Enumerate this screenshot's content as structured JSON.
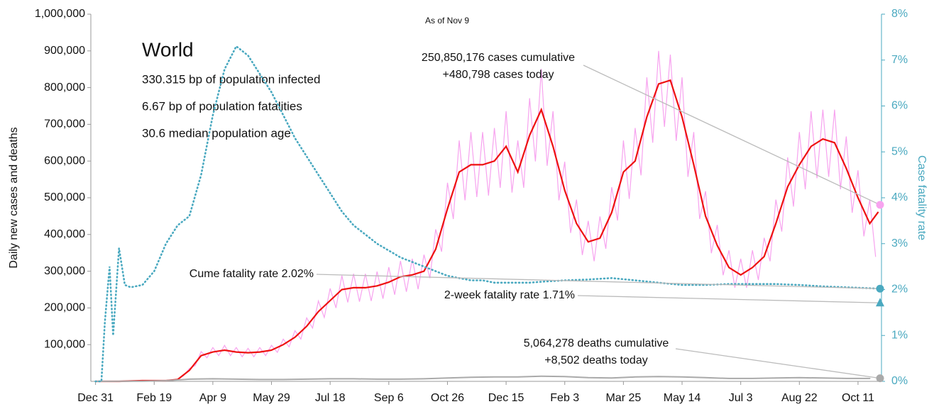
{
  "chart_data": {
    "type": "line",
    "note_date": "As of Nov 9",
    "title": "World",
    "subtitle_lines": [
      "330.315 bp of population infected",
      "6.67 bp of population fatalities",
      "30.6 median population age"
    ],
    "ylabel": "Daily new cases and deaths",
    "y2label": "Case fatality rate",
    "xlim": [
      -4,
      670
    ],
    "xticks": [
      {
        "value": 0,
        "label": "Dec 31"
      },
      {
        "value": 50,
        "label": "Feb 19"
      },
      {
        "value": 100,
        "label": "Apr 9"
      },
      {
        "value": 150,
        "label": "May 29"
      },
      {
        "value": 200,
        "label": "Jul 18"
      },
      {
        "value": 250,
        "label": "Sep 6"
      },
      {
        "value": 300,
        "label": "Oct 26"
      },
      {
        "value": 350,
        "label": "Dec 15"
      },
      {
        "value": 400,
        "label": "Feb 3"
      },
      {
        "value": 450,
        "label": "Mar 25"
      },
      {
        "value": 500,
        "label": "May 14"
      },
      {
        "value": 550,
        "label": "Jul 3"
      },
      {
        "value": 600,
        "label": "Aug 22"
      },
      {
        "value": 650,
        "label": "Oct 11"
      }
    ],
    "ylim": [
      0,
      1000000
    ],
    "yticks": [
      {
        "value": 100000,
        "label": "100,000"
      },
      {
        "value": 200000,
        "label": "200,000"
      },
      {
        "value": 300000,
        "label": "300,000"
      },
      {
        "value": 400000,
        "label": "400,000"
      },
      {
        "value": 500000,
        "label": "500,000"
      },
      {
        "value": 600000,
        "label": "600,000"
      },
      {
        "value": 700000,
        "label": "700,000"
      },
      {
        "value": 800000,
        "label": "800,000"
      },
      {
        "value": 900000,
        "label": "900,000"
      },
      {
        "value": 1000000,
        "label": "1,000,000"
      }
    ],
    "y2lim": [
      0,
      8
    ],
    "y2ticks": [
      {
        "value": 0,
        "label": "0%"
      },
      {
        "value": 1,
        "label": "1%"
      },
      {
        "value": 2,
        "label": "2%"
      },
      {
        "value": 3,
        "label": "3%"
      },
      {
        "value": 4,
        "label": "4%"
      },
      {
        "value": 5,
        "label": "5%"
      },
      {
        "value": 6,
        "label": "6%"
      },
      {
        "value": 7,
        "label": "7%"
      },
      {
        "value": 8,
        "label": "8%"
      }
    ],
    "y2color": "#4aa9c0",
    "series": [
      {
        "color": "#f7a3ef",
        "width": 1.2,
        "dash": "none",
        "x": [
          0,
          5,
          10,
          15,
          20,
          25,
          30,
          35,
          40,
          45,
          50,
          55,
          60,
          65,
          70,
          75,
          80,
          85,
          90,
          95,
          100,
          105,
          110,
          115,
          120,
          125,
          130,
          135,
          140,
          145,
          150,
          155,
          160,
          165,
          170,
          175,
          180,
          185,
          190,
          195,
          200,
          205,
          210,
          215,
          220,
          225,
          230,
          235,
          240,
          245,
          250,
          255,
          260,
          265,
          270,
          275,
          280,
          285,
          290,
          295,
          300,
          305,
          310,
          315,
          320,
          325,
          330,
          335,
          340,
          345,
          350,
          355,
          360,
          365,
          370,
          375,
          380,
          385,
          390,
          395,
          400,
          405,
          410,
          415,
          420,
          425,
          430,
          435,
          440,
          445,
          450,
          455,
          460,
          465,
          470,
          475,
          480,
          485,
          490,
          495,
          500,
          505,
          510,
          515,
          520,
          525,
          530,
          535,
          540,
          545,
          550,
          555,
          560,
          565,
          570,
          575,
          580,
          585,
          590,
          595,
          600,
          605,
          610,
          615,
          620,
          625,
          630,
          635,
          640,
          645,
          650,
          655,
          660,
          665
        ],
        "values": [
          0,
          0,
          0,
          0,
          0,
          0,
          1000,
          1000,
          2000,
          2000,
          2000,
          2000,
          2000,
          3000,
          6000,
          15000,
          35000,
          43000,
          81000,
          64000,
          92000,
          70000,
          98000,
          70000,
          92000,
          67000,
          90000,
          67000,
          92000,
          70000,
          98000,
          79000,
          115000,
          94000,
          138000,
          115000,
          173000,
          145000,
          219000,
          174000,
          253000,
          200000,
          288000,
          215000,
          293000,
          217000,
          293000,
          219000,
          299000,
          225000,
          311000,
          236000,
          328000,
          244000,
          334000,
          251000,
          345000,
          281000,
          414000,
          353000,
          541000,
          442000,
          656000,
          493000,
          679000,
          502000,
          679000,
          506000,
          690000,
          527000,
          736000,
          514000,
          656000,
          527000,
          771000,
          599000,
          851000,
          587000,
          736000,
          493000,
          598000,
          404000,
          495000,
          344000,
          437000,
          327000,
          449000,
          361000,
          529000,
          438000,
          656000,
          497000,
          690000,
          561000,
          828000,
          650000,
          900000,
          693000,
          890000,
          655000,
          828000,
          557000,
          679000,
          442000,
          518000,
          349000,
          426000,
          289000,
          357000,
          255000,
          334000,
          255000,
          357000,
          276000,
          391000,
          327000,
          495000,
          408000,
          610000,
          476000,
          679000,
          523000,
          736000,
          553000,
          740000,
          557000,
          740000,
          523000,
          667000,
          459000,
          575000,
          395000,
          495000,
          340000
        ]
      },
      {
        "color": "#ee1111",
        "width": 2.2,
        "dash": "none",
        "x": [
          0,
          10,
          20,
          30,
          40,
          50,
          60,
          70,
          80,
          90,
          100,
          110,
          120,
          130,
          140,
          150,
          160,
          170,
          180,
          190,
          200,
          210,
          220,
          230,
          240,
          250,
          260,
          270,
          280,
          290,
          300,
          310,
          320,
          330,
          340,
          350,
          360,
          370,
          380,
          390,
          400,
          410,
          420,
          430,
          440,
          450,
          460,
          470,
          480,
          490,
          500,
          510,
          520,
          530,
          540,
          550,
          560,
          570,
          580,
          590,
          600,
          610,
          620,
          630,
          640,
          650,
          660,
          667
        ],
        "values": [
          0,
          0,
          0,
          1000,
          2000,
          2000,
          2000,
          5000,
          30000,
          70000,
          80000,
          85000,
          80000,
          78000,
          80000,
          85000,
          100000,
          120000,
          150000,
          190000,
          220000,
          250000,
          255000,
          255000,
          260000,
          270000,
          285000,
          290000,
          300000,
          360000,
          470000,
          570000,
          590000,
          590000,
          600000,
          640000,
          570000,
          670000,
          740000,
          640000,
          520000,
          430000,
          380000,
          390000,
          460000,
          570000,
          600000,
          720000,
          810000,
          820000,
          720000,
          590000,
          450000,
          370000,
          310000,
          290000,
          310000,
          340000,
          430000,
          530000,
          590000,
          640000,
          660000,
          650000,
          580000,
          500000,
          430000,
          460000
        ]
      },
      {
        "color": "#aaaaaa",
        "width": 2,
        "dash": "none",
        "x": [
          0,
          20,
          40,
          60,
          80,
          100,
          120,
          140,
          160,
          180,
          200,
          220,
          240,
          260,
          280,
          300,
          320,
          340,
          360,
          380,
          400,
          420,
          440,
          460,
          480,
          500,
          520,
          540,
          560,
          580,
          600,
          620,
          640,
          660
        ],
        "values": [
          0,
          100,
          500,
          2000,
          6000,
          7000,
          6000,
          5000,
          5000,
          6000,
          7000,
          7000,
          6000,
          6000,
          7000,
          9000,
          11000,
          12000,
          12000,
          14000,
          13000,
          10000,
          9000,
          12000,
          13000,
          12000,
          10000,
          8000,
          8000,
          9000,
          10000,
          9000,
          8000,
          8000
        ]
      },
      {
        "color": "#4aa9c0",
        "width": 2.6,
        "dash": "1 4",
        "axis": "y2",
        "x": [
          0,
          5,
          8,
          12,
          15,
          20,
          25,
          30,
          40,
          50,
          60,
          70,
          80,
          90,
          100,
          110,
          120,
          130,
          140,
          150,
          160,
          170,
          180,
          190,
          200,
          210,
          220,
          230,
          240,
          250,
          260,
          270,
          280,
          290,
          300,
          310,
          320,
          330,
          340,
          350,
          360,
          370,
          380,
          400,
          420,
          440,
          460,
          480,
          500,
          520,
          540,
          560,
          580,
          600,
          620,
          640,
          660,
          667
        ],
        "values": [
          0,
          0,
          1.3,
          2.5,
          1.0,
          2.9,
          2.1,
          2.05,
          2.1,
          2.4,
          3.0,
          3.4,
          3.6,
          4.5,
          5.8,
          6.8,
          7.3,
          7.1,
          6.7,
          6.3,
          5.8,
          5.3,
          4.9,
          4.5,
          4.1,
          3.7,
          3.4,
          3.2,
          3.0,
          2.85,
          2.7,
          2.6,
          2.5,
          2.4,
          2.3,
          2.25,
          2.2,
          2.2,
          2.15,
          2.15,
          2.15,
          2.15,
          2.17,
          2.2,
          2.22,
          2.25,
          2.2,
          2.15,
          2.1,
          2.1,
          2.12,
          2.12,
          2.12,
          2.1,
          2.07,
          2.05,
          2.03,
          2.02
        ]
      }
    ],
    "annotations": [
      {
        "lines": [
          "250,850,176 cases cumulative",
          "+480,798 cases today"
        ],
        "marker": "circle",
        "color": "#f7a3ef",
        "value": 480798
      },
      {
        "lines": [
          "Cume fatality rate 2.02%"
        ],
        "marker": "circle",
        "color": "#4aa9c0",
        "value": 2.02,
        "axis": "y2"
      },
      {
        "lines": [
          "2-week fatality rate 1.71%"
        ],
        "marker": "triangle",
        "color": "#4aa9c0",
        "value": 1.71,
        "axis": "y2"
      },
      {
        "lines": [
          "5,064,278 deaths cumulative",
          "+8,502 deaths today"
        ],
        "marker": "circle",
        "color": "#aaaaaa",
        "value": 8502
      }
    ]
  }
}
